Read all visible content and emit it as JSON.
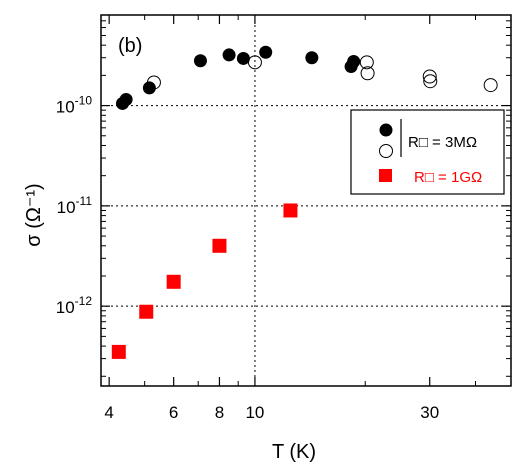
{
  "chart_data": {
    "type": "scatter",
    "panel_label": "(b)",
    "xlabel": "T (K)",
    "ylabel": "σ (Ω⁻¹)",
    "x_scale": "log",
    "y_scale": "log",
    "xlim": [
      3.8,
      50
    ],
    "ylim": [
      1.6e-13,
      8e-10
    ],
    "x_ticks": [
      {
        "value": 4,
        "label": "4"
      },
      {
        "value": 6,
        "label": "6"
      },
      {
        "value": 8,
        "label": "8"
      },
      {
        "value": 10,
        "label": "10"
      },
      {
        "value": 30,
        "label": "30"
      }
    ],
    "y_ticks": [
      {
        "value": 1e-12,
        "base": "10",
        "exp": "-12"
      },
      {
        "value": 1e-11,
        "base": "10",
        "exp": "-11"
      },
      {
        "value": 1e-10,
        "base": "10",
        "exp": "-10"
      }
    ],
    "grid": "dotted at y = 10⁻¹², 10⁻¹¹, 10⁻¹⁰ and x = 10",
    "legend_position": "right",
    "legend": {
      "shared_label": "R□ = 3MΩ",
      "red_label": "R□ = 1GΩ"
    },
    "series": [
      {
        "marker": "filled-circle",
        "color": "#000000",
        "x": [
          4.35,
          4.45,
          5.15,
          7.1,
          8.5,
          9.3,
          10.7,
          14.3,
          18.3,
          18.6
        ],
        "y": [
          1.05e-10,
          1.15e-10,
          1.5e-10,
          2.8e-10,
          3.2e-10,
          2.95e-10,
          3.4e-10,
          3e-10,
          2.45e-10,
          2.75e-10
        ]
      },
      {
        "marker": "open-circle",
        "color": "#000000",
        "x": [
          5.3,
          10.0,
          20.2,
          20.3,
          30.0,
          30.1,
          44.0
        ],
        "y": [
          1.7e-10,
          2.7e-10,
          2.7e-10,
          2.1e-10,
          1.95e-10,
          1.75e-10,
          1.6e-10
        ]
      },
      {
        "marker": "filled-square",
        "color": "#ff0000",
        "x": [
          4.25,
          5.05,
          6.0,
          8.0,
          12.5
        ],
        "y": [
          3.5e-13,
          8.8e-13,
          1.75e-12,
          4e-12,
          9e-12
        ]
      }
    ]
  }
}
